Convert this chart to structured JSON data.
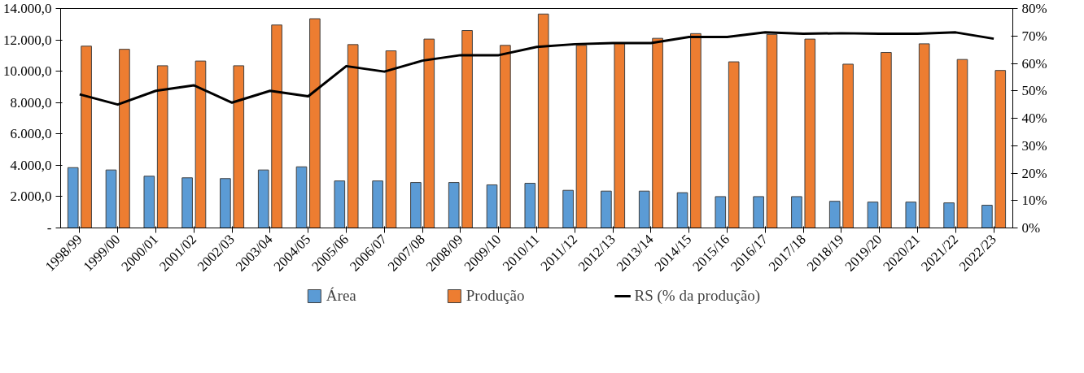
{
  "chart_data": {
    "type": "bar",
    "categories": [
      "1998/99",
      "1999/00",
      "2000/01",
      "2001/02",
      "2002/03",
      "2003/04",
      "2004/05",
      "2005/06",
      "2006/07",
      "2007/08",
      "2008/09",
      "2009/10",
      "2010/11",
      "2011/12",
      "2012/13",
      "2013/14",
      "2014/15",
      "2015/16",
      "2016/17",
      "2017/18",
      "2018/19",
      "2019/20",
      "2020/21",
      "2021/22",
      "2022/23"
    ],
    "series": [
      {
        "name": "Área",
        "color": "#5b9bd5",
        "values": [
          3850,
          3700,
          3300,
          3200,
          3150,
          3700,
          3900,
          3000,
          3000,
          2900,
          2900,
          2750,
          2850,
          2400,
          2350,
          2350,
          2250,
          2000,
          2000,
          2000,
          1700,
          1650,
          1650,
          1600,
          1450
        ]
      },
      {
        "name": "Produção",
        "color": "#ed7d31",
        "values": [
          11600,
          11400,
          10350,
          10650,
          10350,
          12950,
          13350,
          11700,
          11300,
          12050,
          12600,
          11650,
          13650,
          11650,
          11800,
          12100,
          12400,
          10600,
          12350,
          12050,
          10450,
          11200,
          11750,
          10750,
          10050
        ]
      },
      {
        "name": "RS (% da produção)",
        "type": "line",
        "axis": "y2",
        "color": "#000000",
        "values": [
          48.7,
          45,
          50,
          52,
          45.7,
          50,
          48,
          59,
          57,
          61,
          63,
          63,
          66,
          67,
          67.4,
          67.4,
          69.6,
          69.6,
          71.3,
          70.8,
          71,
          70.8,
          70.8,
          71.3,
          69
        ]
      }
    ],
    "ylim": [
      0,
      14000
    ],
    "yticks": [
      {
        "value": 0,
        "label": "-"
      },
      {
        "value": 2000,
        "label": "2.000,0"
      },
      {
        "value": 4000,
        "label": "4.000,0"
      },
      {
        "value": 6000,
        "label": "6.000,0"
      },
      {
        "value": 8000,
        "label": "8.000,0"
      },
      {
        "value": 10000,
        "label": "10.000,0"
      },
      {
        "value": 12000,
        "label": "12.000,0"
      },
      {
        "value": 14000,
        "label": "14.000,0"
      }
    ],
    "y2lim": [
      0,
      80
    ],
    "y2ticks": [
      {
        "value": 0,
        "label": "0%"
      },
      {
        "value": 10,
        "label": "10%"
      },
      {
        "value": 20,
        "label": "20%"
      },
      {
        "value": 30,
        "label": "30%"
      },
      {
        "value": 40,
        "label": "40%"
      },
      {
        "value": 50,
        "label": "50%"
      },
      {
        "value": 60,
        "label": "60%"
      },
      {
        "value": 70,
        "label": "70%"
      },
      {
        "value": 80,
        "label": "80%"
      }
    ],
    "legend": "bottom",
    "grid": false,
    "line_style": "solid",
    "marker": "none"
  }
}
